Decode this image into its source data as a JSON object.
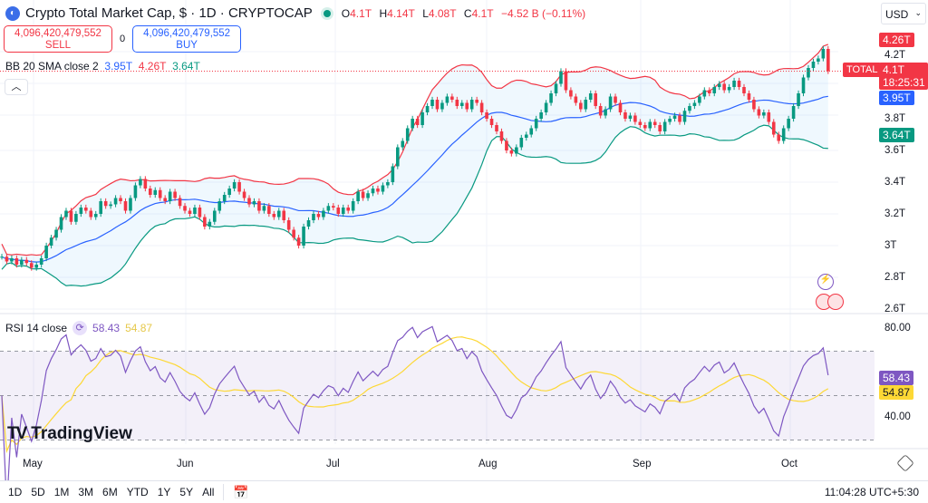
{
  "header": {
    "title": "Crypto Total Market Cap, $ · 1D · CRYPTOCAP",
    "open_label": "O",
    "open": "4.1T",
    "high_label": "H",
    "high": "4.14T",
    "low_label": "L",
    "low": "4.08T",
    "close_label": "C",
    "close": "4.1T",
    "change": "−4.52 B (−0.11%)",
    "logo_icon": "cryptocap-logo-icon"
  },
  "trade": {
    "sell_price": "4,096,420,479,552",
    "sell_label": "SELL",
    "spread": "0",
    "buy_price": "4,096,420,479,552",
    "buy_label": "BUY"
  },
  "bb": {
    "label": "BB 20 SMA close 2",
    "basis": "3.95T",
    "upper": "4.26T",
    "lower": "3.64T"
  },
  "currency": "USD",
  "price_axis": {
    "ticks": [
      "4.2T",
      "3.8T",
      "3.6T",
      "3.4T",
      "3.2T",
      "3T",
      "2.8T",
      "2.6T"
    ],
    "tick_values": [
      4.2,
      3.8,
      3.6,
      3.4,
      3.2,
      3.0,
      2.8,
      2.6
    ]
  },
  "price_labels": {
    "upper": "4.26T",
    "symbol": "TOTAL",
    "last": "4.1T",
    "countdown": "18:25:31",
    "basis": "3.95T",
    "lower": "3.64T"
  },
  "rsi": {
    "label": "RSI 14 close",
    "value": "58.43",
    "sma": "54.87",
    "ticks": [
      "80.00",
      "40.00"
    ],
    "tick_values": [
      80,
      40
    ],
    "bands": [
      70,
      50,
      30
    ]
  },
  "brand": "TradingView",
  "time_axis": [
    "May",
    "Jun",
    "Jul",
    "Aug",
    "Sep",
    "Oct"
  ],
  "ranges": [
    "1D",
    "5D",
    "1M",
    "3M",
    "6M",
    "YTD",
    "1Y",
    "5Y",
    "All"
  ],
  "clock": "11:04:28 UTC+5:30",
  "colors": {
    "up": "#089981",
    "down": "#f23645",
    "bb_basis": "#2962ff",
    "bb_upper": "#f23645",
    "bb_lower": "#089981",
    "rsi": "#7e57c2",
    "rsi_sma": "#fdd835"
  },
  "chart_data": {
    "type": "candlestick",
    "interval": "1D",
    "start_date": "2024-04-24",
    "end_date": "2024-10-08",
    "unit": "USD trillions",
    "ylim": [
      2.6,
      4.3
    ],
    "grid": true,
    "close": [
      2.93,
      2.9,
      2.92,
      2.88,
      2.91,
      2.89,
      2.86,
      2.88,
      2.92,
      3.0,
      3.05,
      3.1,
      3.18,
      3.22,
      3.15,
      3.2,
      3.24,
      3.22,
      3.18,
      3.2,
      3.28,
      3.25,
      3.26,
      3.3,
      3.28,
      3.22,
      3.3,
      3.38,
      3.42,
      3.36,
      3.32,
      3.35,
      3.3,
      3.28,
      3.34,
      3.3,
      3.25,
      3.22,
      3.2,
      3.24,
      3.18,
      3.12,
      3.15,
      3.22,
      3.28,
      3.32,
      3.36,
      3.4,
      3.34,
      3.3,
      3.26,
      3.28,
      3.22,
      3.25,
      3.2,
      3.18,
      3.22,
      3.16,
      3.1,
      3.05,
      3.0,
      3.12,
      3.16,
      3.2,
      3.18,
      3.22,
      3.25,
      3.24,
      3.2,
      3.24,
      3.22,
      3.28,
      3.34,
      3.3,
      3.33,
      3.36,
      3.34,
      3.38,
      3.4,
      3.5,
      3.62,
      3.66,
      3.74,
      3.8,
      3.76,
      3.84,
      3.88,
      3.92,
      3.86,
      3.9,
      3.94,
      3.92,
      3.88,
      3.9,
      3.86,
      3.92,
      3.9,
      3.84,
      3.8,
      3.76,
      3.72,
      3.66,
      3.6,
      3.58,
      3.62,
      3.68,
      3.7,
      3.74,
      3.8,
      3.84,
      3.9,
      3.96,
      4.02,
      4.1,
      3.98,
      3.94,
      3.9,
      3.86,
      3.92,
      3.96,
      3.88,
      3.82,
      3.86,
      3.94,
      3.9,
      3.84,
      3.8,
      3.82,
      3.78,
      3.76,
      3.74,
      3.78,
      3.76,
      3.72,
      3.78,
      3.8,
      3.82,
      3.78,
      3.85,
      3.88,
      3.9,
      3.94,
      3.98,
      3.96,
      4.0,
      4.02,
      3.98,
      4.0,
      4.04,
      4.0,
      3.96,
      3.92,
      3.86,
      3.82,
      3.84,
      3.78,
      3.7,
      3.66,
      3.74,
      3.8,
      3.88,
      3.96,
      4.06,
      4.12,
      4.16,
      4.18,
      4.24,
      4.1
    ],
    "indicators": [
      "BB 20 SMA close 2",
      "RSI 14 close"
    ]
  }
}
